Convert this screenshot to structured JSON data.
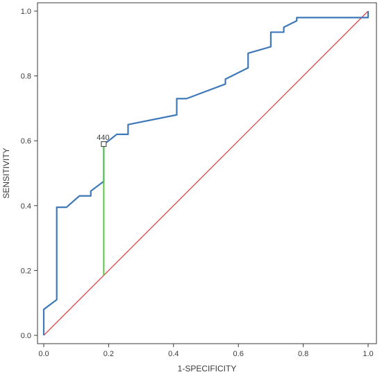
{
  "chart_data": {
    "type": "line",
    "title": "",
    "xlabel": "1-SPECIFICITY",
    "ylabel": "SENSITIVITY",
    "xlim": [
      0.0,
      1.0
    ],
    "ylim": [
      0.0,
      1.0
    ],
    "xticks": [
      "0.0",
      "0.2",
      "0.4",
      "0.6",
      "0.8",
      "1.0"
    ],
    "yticks": [
      "0.0",
      "0.2",
      "0.4",
      "0.6",
      "0.8",
      "1.0"
    ],
    "grid": false,
    "series": [
      {
        "color": "#3f78b8",
        "points": [
          [
            0.0,
            0.0
          ],
          [
            0.0,
            0.08
          ],
          [
            0.04,
            0.11
          ],
          [
            0.04,
            0.395
          ],
          [
            0.07,
            0.395
          ],
          [
            0.11,
            0.43
          ],
          [
            0.145,
            0.43
          ],
          [
            0.145,
            0.445
          ],
          [
            0.185,
            0.475
          ],
          [
            0.185,
            0.59
          ],
          [
            0.2,
            0.6
          ],
          [
            0.225,
            0.62
          ],
          [
            0.26,
            0.62
          ],
          [
            0.26,
            0.65
          ],
          [
            0.41,
            0.68
          ],
          [
            0.41,
            0.73
          ],
          [
            0.44,
            0.73
          ],
          [
            0.56,
            0.775
          ],
          [
            0.56,
            0.79
          ],
          [
            0.63,
            0.825
          ],
          [
            0.63,
            0.87
          ],
          [
            0.7,
            0.89
          ],
          [
            0.7,
            0.935
          ],
          [
            0.74,
            0.935
          ],
          [
            0.74,
            0.95
          ],
          [
            0.78,
            0.97
          ],
          [
            0.78,
            0.98
          ],
          [
            1.0,
            0.98
          ],
          [
            1.0,
            1.0
          ]
        ]
      },
      {
        "color": "#d9534f",
        "points": [
          [
            0.0,
            0.0
          ],
          [
            1.0,
            1.0
          ]
        ]
      }
    ],
    "annotations": [
      {
        "label": "440",
        "x": 0.185,
        "y": 0.59,
        "marker": "square",
        "vertical_line_to_y": 0.185,
        "line_color": "#5cc83c"
      }
    ]
  }
}
